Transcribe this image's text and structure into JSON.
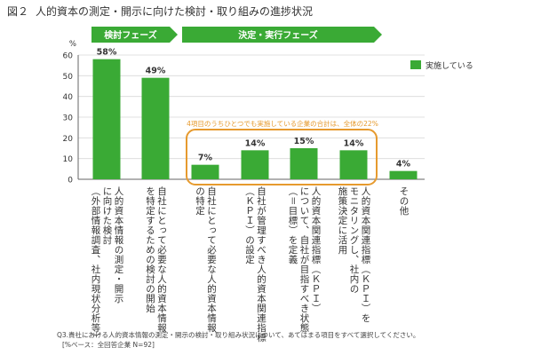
{
  "figure": {
    "number": "図２",
    "title": "人的資本の測定・開示に向けた検討・取り組みの進捗状況"
  },
  "phases": [
    {
      "label": "検討フェーズ",
      "color": "#3aaa35"
    },
    {
      "label": "決定・実行フェーズ",
      "color": "#3aaa35"
    }
  ],
  "callout": {
    "text": "4項目のうちひとつでも実施している企業の合計は、全体の22%",
    "color": "#e69a2e"
  },
  "chart_data": {
    "type": "bar",
    "y_unit": "%",
    "ylim": [
      0,
      60
    ],
    "yticks": [
      0,
      10,
      20,
      30,
      40,
      50,
      60
    ],
    "grid": true,
    "legend_position": "right",
    "series": [
      {
        "name": "実施している",
        "color": "#3aaa35",
        "values": [
          58,
          49,
          7,
          14,
          15,
          14,
          4
        ]
      }
    ],
    "data_labels": [
      "58%",
      "49%",
      "7%",
      "14%",
      "15%",
      "14%",
      "4%"
    ],
    "categories": [
      [
        "人的資本情報の測定・開示",
        "に向けた検討",
        "（外部情報調査、社内現状分析等）"
      ],
      [
        "自社にとって必要な人的資本情報",
        "を特定するための検討の開始"
      ],
      [
        "自社にとって必要な人的資本情報",
        "の特定"
      ],
      [
        "自社が管理すべき人的資本関連指標",
        "（ＫＰＩ）の設定"
      ],
      [
        "人的資本関連指標（ＫＰＩ）",
        "について、自社が目指すべき状態",
        "（＝目標）を定義"
      ],
      [
        "人的資本関連指標（ＫＰＩ）を",
        "モニタリングし、社内の",
        "施策決定に活用"
      ],
      [
        "その他"
      ]
    ]
  },
  "footnote": {
    "line1": "Q3.貴社における人的資本情報の測定・開示の検討・取り組み状況について、あてはまる項目をすべて選択してください。",
    "line2": "[%ベース：全回答企業 N=92]"
  }
}
